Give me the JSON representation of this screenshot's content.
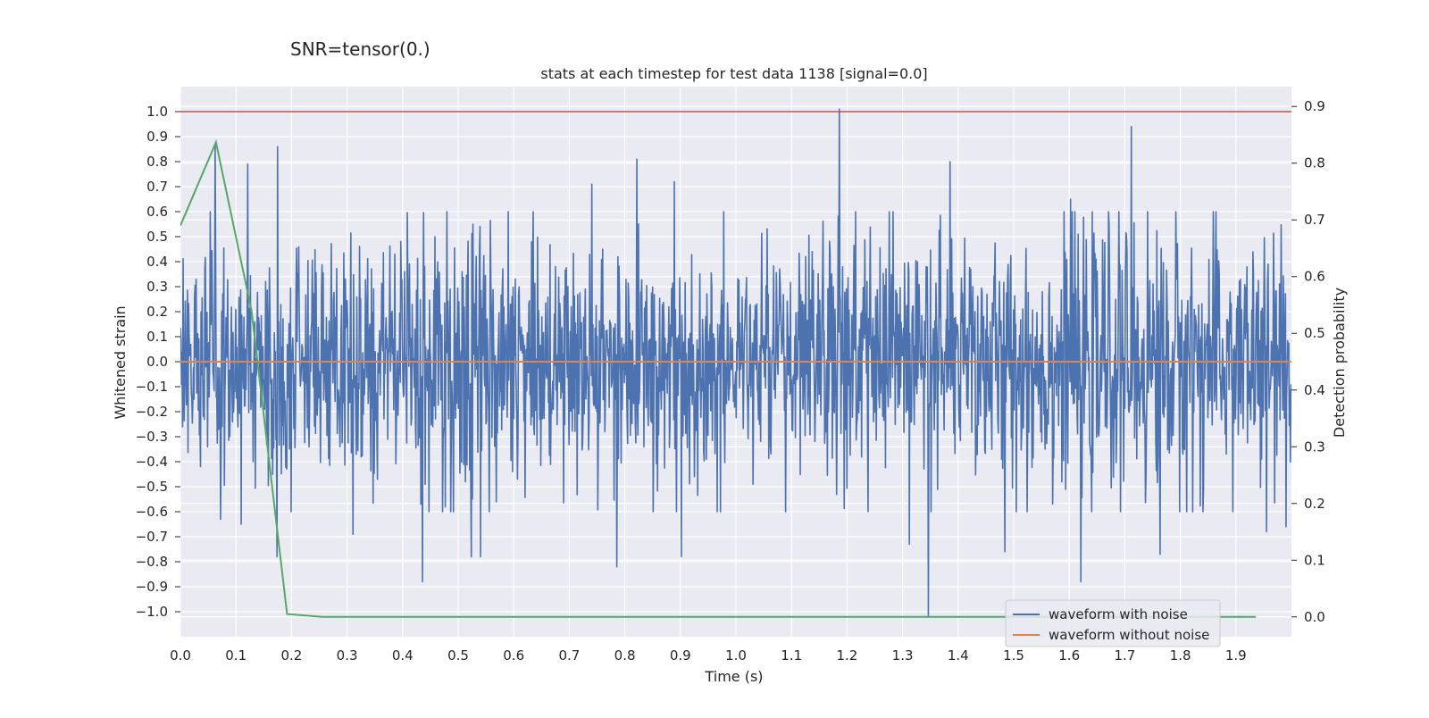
{
  "chart_data": {
    "type": "line",
    "suptitle": "SNR=tensor(0.)",
    "title": "stats at each timestep for test data 1138 [signal=0.0]",
    "xlabel": "Time (s)",
    "ylabel": "Whitened strain",
    "y2label": "Detection probability",
    "xlim": [
      0.0,
      2.0
    ],
    "ylim": [
      -1.1,
      1.1
    ],
    "y2lim": [
      -0.035,
      0.935
    ],
    "x_ticks": [
      "0.0",
      "0.1",
      "0.2",
      "0.3",
      "0.4",
      "0.5",
      "0.6",
      "0.7",
      "0.8",
      "0.9",
      "1.0",
      "1.1",
      "1.2",
      "1.3",
      "1.4",
      "1.5",
      "1.6",
      "1.7",
      "1.8",
      "1.9"
    ],
    "y_ticks": [
      "1.0",
      "0.9",
      "0.8",
      "0.7",
      "0.6",
      "0.5",
      "0.4",
      "0.3",
      "0.2",
      "0.1",
      "0.0",
      "−0.1",
      "−0.2",
      "−0.3",
      "−0.4",
      "−0.5",
      "−0.6",
      "−0.7",
      "−0.8",
      "−0.9",
      "−1.0"
    ],
    "y2_ticks": [
      "0.9",
      "0.8",
      "0.7",
      "0.6",
      "0.5",
      "0.4",
      "0.3",
      "0.2",
      "0.1",
      "0.0"
    ],
    "grid": true,
    "legend_position": "bottom-right",
    "threshold_line": {
      "y": 1.0,
      "color": "#c44e52"
    },
    "series": [
      {
        "name": "waveform with noise",
        "color": "#4c72b0",
        "axis": "left",
        "generated_noise": {
          "x_start": 0.0,
          "x_end": 2.0,
          "samples": 2048,
          "envelope_x": [
            0.0,
            0.25,
            0.5,
            0.75,
            1.0,
            1.25,
            1.5,
            1.75,
            2.0
          ],
          "envelope_std": [
            0.22,
            0.25,
            0.27,
            0.24,
            0.22,
            0.27,
            0.24,
            0.27,
            0.24
          ],
          "peaks": [
            {
              "x": 0.063,
              "y": 0.87
            },
            {
              "x": 0.072,
              "y": -0.63
            },
            {
              "x": 0.109,
              "y": -0.65
            },
            {
              "x": 0.121,
              "y": 0.79
            },
            {
              "x": 0.175,
              "y": 0.86
            },
            {
              "x": 0.174,
              "y": -0.78
            },
            {
              "x": 0.311,
              "y": -0.69
            },
            {
              "x": 0.436,
              "y": -0.88
            },
            {
              "x": 0.524,
              "y": -0.78
            },
            {
              "x": 0.54,
              "y": -0.78
            },
            {
              "x": 0.569,
              "y": -0.56
            },
            {
              "x": 0.741,
              "y": 0.71
            },
            {
              "x": 0.786,
              "y": -0.82
            },
            {
              "x": 0.822,
              "y": 0.81
            },
            {
              "x": 0.902,
              "y": -0.78
            },
            {
              "x": 0.889,
              "y": 0.72
            },
            {
              "x": 1.186,
              "y": 1.01
            },
            {
              "x": 1.346,
              "y": -1.02
            },
            {
              "x": 1.312,
              "y": -0.73
            },
            {
              "x": 1.385,
              "y": 0.8
            },
            {
              "x": 1.484,
              "y": -0.76
            },
            {
              "x": 1.621,
              "y": -0.88
            },
            {
              "x": 1.712,
              "y": 0.94
            },
            {
              "x": 1.764,
              "y": -0.77
            },
            {
              "x": 1.602,
              "y": 0.65
            },
            {
              "x": 1.955,
              "y": -0.68
            },
            {
              "x": 1.99,
              "y": -0.66
            }
          ]
        }
      },
      {
        "name": "waveform without noise",
        "color": "#dd8452",
        "axis": "left",
        "x": [
          0.0,
          2.0
        ],
        "y": [
          0.0,
          0.0
        ]
      },
      {
        "name": "Detection probability",
        "color": "#55a868",
        "axis": "right",
        "show_in_legend": false,
        "x": [
          0.0,
          0.064,
          0.128,
          0.192,
          0.256,
          0.5,
          1.0,
          1.5,
          1.936
        ],
        "y": [
          0.69,
          0.837,
          0.54,
          0.005,
          0.0,
          0.0,
          0.0,
          0.0,
          0.0
        ]
      }
    ]
  }
}
